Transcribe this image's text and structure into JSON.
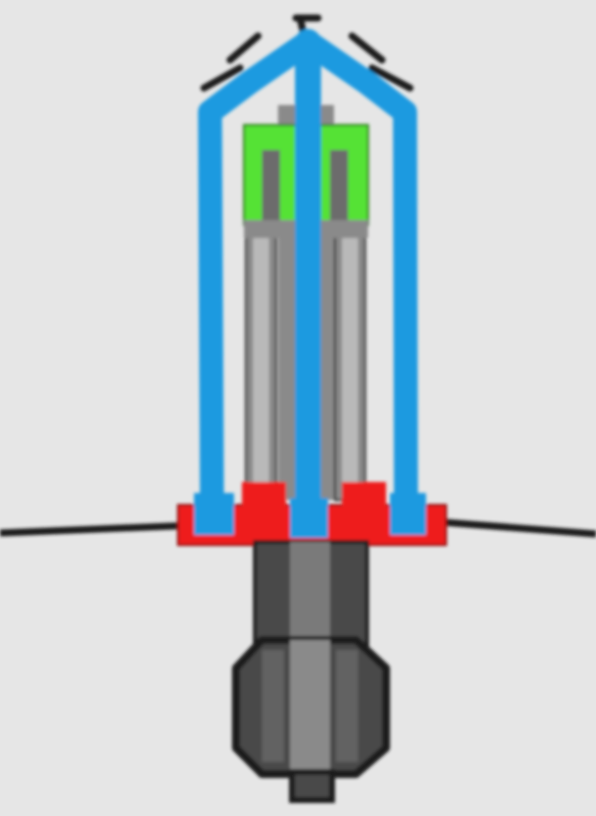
{
  "illustration": {
    "subject": "sprinkler-emitter",
    "colors": {
      "background": "#e6e6e6",
      "frame": "#1e9ae0",
      "tube": "#8a8a8a",
      "tube_light": "#b9b9b9",
      "nozzle": "#55e235",
      "collar": "#ee1c1c",
      "body": "#4a4a4a",
      "outline": "#1a1a1a",
      "line": "#1a1a1a"
    }
  }
}
